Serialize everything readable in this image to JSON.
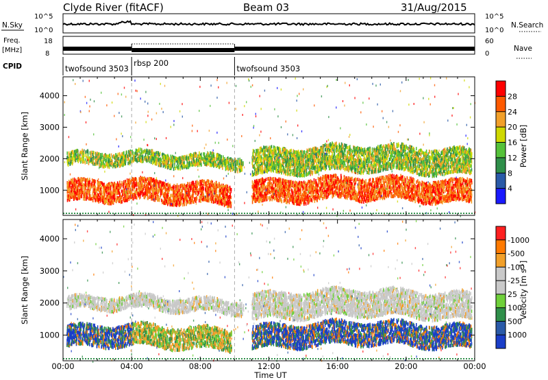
{
  "header": {
    "title": "Clyde River (fitACF)",
    "beam": "Beam 03",
    "date": "31/Aug/2015"
  },
  "colors": {
    "power_scale": [
      "#1a1aff",
      "#2a5aa8",
      "#2f8f4a",
      "#55c23a",
      "#cfd800",
      "#f2a02a",
      "#ff5a00",
      "#ff0000"
    ],
    "velocity_scale": [
      "#1a3ec8",
      "#2a5aa8",
      "#2f8f4a",
      "#6fd03a",
      "#c9c9c9",
      "#c9c9c9",
      "#f2a02a",
      "#ff7a00",
      "#ff2020"
    ]
  },
  "chart_data": [
    {
      "type": "line",
      "name": "nsky_nsearch_panel",
      "ylabel_left": "N.Sky",
      "ylabel_right": "N.Search",
      "left_ticks": [
        "10^5",
        "10^0"
      ],
      "right_ticks": [
        "10^5",
        "10^0"
      ],
      "x": [
        "00:00",
        "04:00",
        "08:00",
        "12:00",
        "16:00",
        "20:00",
        "00:00"
      ],
      "note_trace": "noise level near 10^4 throughout"
    },
    {
      "type": "line",
      "name": "freq_nave_panel",
      "ylabel_left_top": "Freq.",
      "ylabel_left_unit": "[MHz]",
      "ylabel_right": "Nave",
      "left_ticks": [
        "18",
        "8"
      ],
      "right_ticks": [
        "60",
        "0"
      ],
      "frequency_segments": [
        {
          "start_hour": 0,
          "end_hour": 4,
          "freq_mhz": 11
        },
        {
          "start_hour": 4,
          "end_hour": 10,
          "freq_mhz": 12,
          "dotted_top": true
        },
        {
          "start_hour": 10,
          "end_hour": 24,
          "freq_mhz": 11
        }
      ]
    },
    {
      "type": "table",
      "name": "cpid_panel",
      "label": "CPID",
      "modes": [
        {
          "label": "twofsound 3503",
          "start_hour": 0,
          "end_hour": 4
        },
        {
          "label": "rbsp 200",
          "start_hour": 4,
          "end_hour": 10
        },
        {
          "label": "twofsound 3503",
          "start_hour": 10,
          "end_hour": 24
        }
      ]
    },
    {
      "type": "heatmap",
      "name": "power_rti",
      "ylabel": "Slant Range [km]",
      "xlabel": "Time UT",
      "xlim_hours": [
        0,
        24
      ],
      "ylim_km": [
        200,
        4600
      ],
      "y_ticks": [
        "1000",
        "2000",
        "3000",
        "4000"
      ],
      "x_ticks": [
        "00:00",
        "04:00",
        "08:00",
        "12:00",
        "16:00",
        "20:00",
        "00:00"
      ],
      "colorbar_label": "Power [dB]",
      "colorbar_ticks": [
        "4",
        "8",
        "12",
        "16",
        "20",
        "24",
        "28"
      ],
      "scatter_bands": [
        {
          "t0": 0.2,
          "t1": 9.8,
          "r0": 650,
          "r1": 1300,
          "value": "high"
        },
        {
          "t0": 0.2,
          "t1": 10.5,
          "r0": 1800,
          "r1": 2200,
          "value": "medium"
        },
        {
          "t0": 11.0,
          "t1": 23.8,
          "r0": 700,
          "r1": 1400,
          "value": "high"
        },
        {
          "t0": 11.0,
          "t1": 23.8,
          "r0": 1600,
          "r1": 2400,
          "value": "medium"
        }
      ]
    },
    {
      "type": "heatmap",
      "name": "velocity_rti",
      "ylabel": "Slant Range [km]",
      "xlabel": "Time UT",
      "xlim_hours": [
        0,
        24
      ],
      "ylim_km": [
        200,
        4600
      ],
      "y_ticks": [
        "1000",
        "2000",
        "3000",
        "4000"
      ],
      "x_ticks": [
        "00:00",
        "04:00",
        "08:00",
        "12:00",
        "16:00",
        "20:00",
        "00:00"
      ],
      "colorbar_label": "Velocity [m s^-1]",
      "colorbar_label_main": "Velocity",
      "colorbar_label_unit": "[m s",
      "colorbar_label_exp": "-1",
      "colorbar_label_close": "]",
      "colorbar_ticks": [
        "1000",
        "500",
        "100",
        "25",
        "-25",
        "-100",
        "-500",
        "-1000"
      ],
      "scatter_bands": [
        {
          "t0": 0.2,
          "t1": 9.8,
          "r0": 650,
          "r1": 1300,
          "value": "positive"
        },
        {
          "t0": 0.2,
          "t1": 10.5,
          "r0": 1800,
          "r1": 2200,
          "value": "near_zero"
        },
        {
          "t0": 11.0,
          "t1": 23.8,
          "r0": 700,
          "r1": 1400,
          "value": "positive"
        },
        {
          "t0": 11.0,
          "t1": 23.8,
          "r0": 1600,
          "r1": 2400,
          "value": "near_zero"
        }
      ]
    }
  ]
}
